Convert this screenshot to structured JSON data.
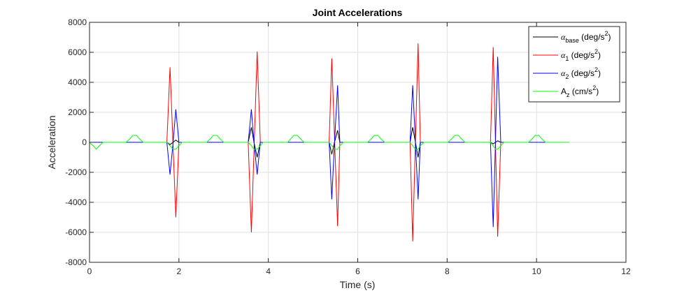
{
  "chart_data": {
    "type": "line",
    "title": "Joint Accelerations",
    "xlabel": "Time (s)",
    "ylabel": "Acceleration",
    "xlim": [
      0,
      12
    ],
    "ylim": [
      -8000,
      8000
    ],
    "xticks": [
      "0",
      "2",
      "4",
      "6",
      "8",
      "10",
      "12"
    ],
    "yticks": [
      "8000",
      "6000",
      "4000",
      "2000",
      "0",
      "-2000",
      "-4000",
      "-6000",
      "-8000"
    ],
    "grid": true,
    "legend_position": "top-right",
    "series": [
      {
        "name": "α_base (deg/s²)",
        "legend": {
          "symbol": "α",
          "sub": "base",
          "unit_pre": " (deg/s",
          "unit_sup": "2",
          "unit_post": ")"
        },
        "color": "#000000",
        "points": [
          [
            0,
            0
          ],
          [
            1.73,
            0
          ],
          [
            1.8,
            -150
          ],
          [
            1.87,
            0
          ],
          [
            1.93,
            150
          ],
          [
            2.0,
            0
          ],
          [
            3.55,
            0
          ],
          [
            3.62,
            1000
          ],
          [
            3.68,
            0
          ],
          [
            3.75,
            -1000
          ],
          [
            3.82,
            0
          ],
          [
            5.36,
            0
          ],
          [
            5.42,
            -800
          ],
          [
            5.48,
            0
          ],
          [
            5.55,
            800
          ],
          [
            5.6,
            0
          ],
          [
            7.17,
            0
          ],
          [
            7.23,
            1000
          ],
          [
            7.29,
            0
          ],
          [
            7.35,
            -1000
          ],
          [
            7.4,
            0
          ],
          [
            8.97,
            0
          ],
          [
            9.03,
            -100
          ],
          [
            9.08,
            0
          ],
          [
            9.13,
            100
          ],
          [
            9.2,
            0
          ],
          [
            10.72,
            0
          ]
        ]
      },
      {
        "name": "α₁ (deg/s²)",
        "legend": {
          "symbol": "α",
          "sub": "1",
          "unit_pre": " (deg/s",
          "unit_sup": "2",
          "unit_post": ")"
        },
        "color": "#ff0000",
        "points": [
          [
            0,
            0
          ],
          [
            1.73,
            0
          ],
          [
            1.8,
            5000
          ],
          [
            1.93,
            -5000
          ],
          [
            2.0,
            0
          ],
          [
            3.55,
            0
          ],
          [
            3.62,
            -6000
          ],
          [
            3.75,
            6050
          ],
          [
            3.82,
            0
          ],
          [
            5.36,
            0
          ],
          [
            5.42,
            5600
          ],
          [
            5.55,
            -5600
          ],
          [
            5.6,
            0
          ],
          [
            7.17,
            0
          ],
          [
            7.23,
            -6600
          ],
          [
            7.35,
            6600
          ],
          [
            7.4,
            0
          ],
          [
            8.97,
            0
          ],
          [
            9.03,
            6350
          ],
          [
            9.13,
            -6300
          ],
          [
            9.2,
            0
          ],
          [
            10.72,
            0
          ]
        ]
      },
      {
        "name": "α₂ (deg/s²)",
        "legend": {
          "symbol": "α",
          "sub": "2",
          "unit_pre": " (deg/s",
          "unit_sup": "2",
          "unit_post": ")"
        },
        "color": "#0000ff",
        "points": [
          [
            0,
            0
          ],
          [
            1.73,
            0
          ],
          [
            1.8,
            -2150
          ],
          [
            1.87,
            0
          ],
          [
            1.93,
            2200
          ],
          [
            2.0,
            0
          ],
          [
            3.55,
            0
          ],
          [
            3.62,
            2200
          ],
          [
            3.68,
            0
          ],
          [
            3.75,
            -2150
          ],
          [
            3.82,
            0
          ],
          [
            5.36,
            0
          ],
          [
            5.42,
            -3800
          ],
          [
            5.48,
            0
          ],
          [
            5.55,
            3800
          ],
          [
            5.6,
            0
          ],
          [
            7.17,
            0
          ],
          [
            7.23,
            3800
          ],
          [
            7.29,
            0
          ],
          [
            7.35,
            -3800
          ],
          [
            7.4,
            0
          ],
          [
            8.97,
            0
          ],
          [
            9.03,
            -5650
          ],
          [
            9.08,
            0
          ],
          [
            9.13,
            5700
          ],
          [
            9.2,
            0
          ],
          [
            10.72,
            0
          ]
        ]
      },
      {
        "name": "A_z (cm/s²)",
        "legend": {
          "symbol": "A",
          "sub": "z",
          "unit_pre": " (cm/s",
          "unit_sup": "2",
          "unit_post": ")"
        },
        "color": "#00ff00",
        "points": [
          [
            0,
            0
          ],
          [
            0.08,
            -230
          ],
          [
            0.15,
            -460
          ],
          [
            0.22,
            -230
          ],
          [
            0.3,
            0
          ],
          [
            0.82,
            0
          ],
          [
            0.9,
            230
          ],
          [
            0.97,
            460
          ],
          [
            1.05,
            460
          ],
          [
            1.12,
            230
          ],
          [
            1.2,
            0
          ],
          [
            1.73,
            0
          ],
          [
            1.8,
            -230
          ],
          [
            1.87,
            -460
          ],
          [
            1.93,
            -460
          ],
          [
            2.0,
            -230
          ],
          [
            2.07,
            0
          ],
          [
            2.62,
            0
          ],
          [
            2.7,
            230
          ],
          [
            2.77,
            460
          ],
          [
            2.85,
            460
          ],
          [
            2.92,
            230
          ],
          [
            3.0,
            0
          ],
          [
            3.55,
            0
          ],
          [
            3.62,
            -230
          ],
          [
            3.68,
            -460
          ],
          [
            3.75,
            -460
          ],
          [
            3.82,
            -230
          ],
          [
            3.88,
            0
          ],
          [
            4.43,
            0
          ],
          [
            4.5,
            230
          ],
          [
            4.57,
            460
          ],
          [
            4.65,
            460
          ],
          [
            4.72,
            230
          ],
          [
            4.8,
            0
          ],
          [
            5.36,
            0
          ],
          [
            5.42,
            -230
          ],
          [
            5.48,
            -460
          ],
          [
            5.55,
            -460
          ],
          [
            5.6,
            -230
          ],
          [
            5.68,
            0
          ],
          [
            6.22,
            0
          ],
          [
            6.3,
            230
          ],
          [
            6.37,
            460
          ],
          [
            6.45,
            460
          ],
          [
            6.52,
            230
          ],
          [
            6.6,
            0
          ],
          [
            7.17,
            0
          ],
          [
            7.23,
            -230
          ],
          [
            7.29,
            -460
          ],
          [
            7.35,
            -460
          ],
          [
            7.4,
            -230
          ],
          [
            7.48,
            0
          ],
          [
            8.02,
            0
          ],
          [
            8.1,
            230
          ],
          [
            8.17,
            460
          ],
          [
            8.25,
            460
          ],
          [
            8.32,
            230
          ],
          [
            8.4,
            0
          ],
          [
            8.97,
            0
          ],
          [
            9.03,
            -230
          ],
          [
            9.08,
            -460
          ],
          [
            9.13,
            -460
          ],
          [
            9.2,
            -230
          ],
          [
            9.27,
            0
          ],
          [
            9.82,
            0
          ],
          [
            9.9,
            230
          ],
          [
            9.97,
            460
          ],
          [
            10.05,
            460
          ],
          [
            10.12,
            230
          ],
          [
            10.2,
            0
          ],
          [
            10.72,
            0
          ]
        ]
      }
    ]
  }
}
